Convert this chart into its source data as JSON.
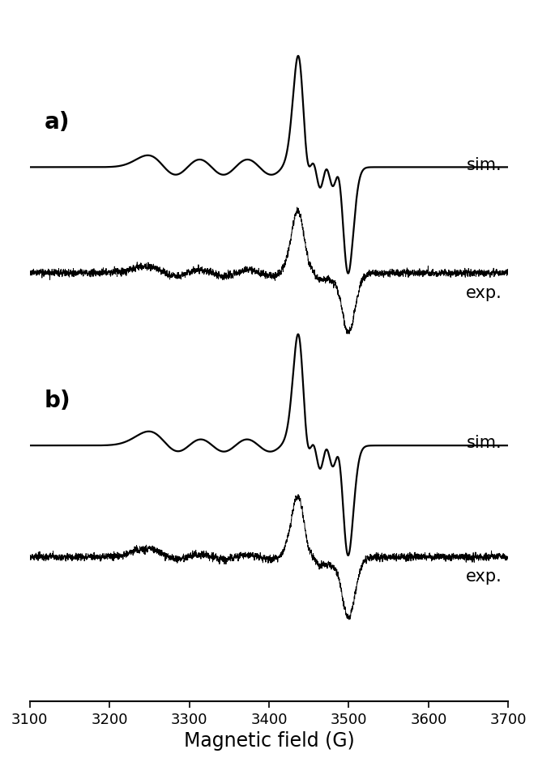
{
  "x_min": 3100,
  "x_max": 3700,
  "xlabel": "Magnetic field (G)",
  "xticks": [
    3100,
    3200,
    3300,
    3400,
    3500,
    3600,
    3700
  ],
  "label_a": "a)",
  "label_b": "b)",
  "label_sim": "sim.",
  "label_exp": "exp.",
  "background_color": "#ffffff",
  "line_color": "#000000",
  "linewidth_sim": 1.6,
  "linewidth_exp": 0.7,
  "label_fontsize": 20,
  "axis_fontsize": 15,
  "tick_fontsize": 13
}
